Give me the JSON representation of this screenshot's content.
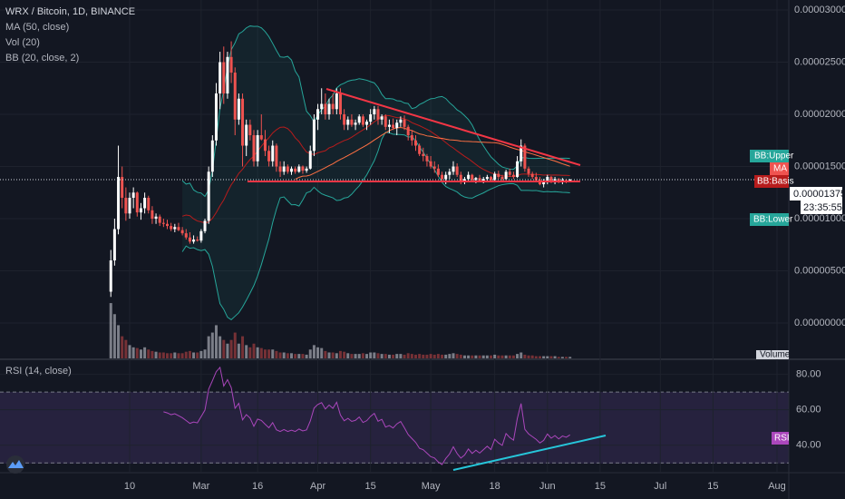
{
  "chart_data": {
    "type": "candlestick",
    "title": "WRX / Bitcoin, 1D, BINANCE",
    "indicators": [
      "MA (50, close)",
      "Vol (20)",
      "BB (20, close, 2)"
    ],
    "rsi_title": "RSI (14, close)",
    "tags": {
      "bb_upper": "BB:Upper",
      "ma": "MA",
      "bb_basis": "BB:Basis",
      "bb_lower": "BB:Lower",
      "volume": "Volume",
      "rsi": "RSI"
    },
    "price_label": "0.00001375",
    "countdown": "23:35:55",
    "up_color": "#ffffff",
    "down_color": "#ef5350",
    "ylim": [
      -3.39e-06,
      3.096e-05
    ],
    "yticks": [
      {
        "value": 3e-05,
        "label": "0.00003000"
      },
      {
        "value": 2.5e-05,
        "label": "0.00002500"
      },
      {
        "value": 2e-05,
        "label": "0.00002000"
      },
      {
        "value": 1.5e-05,
        "label": "0.00001500"
      },
      {
        "value": 1e-05,
        "label": "0.00001000"
      },
      {
        "value": 5e-06,
        "label": "0.00000500"
      },
      {
        "value": 0,
        "label": "0.00000000"
      }
    ],
    "rsi_ylim": [
      25,
      88
    ],
    "rsi_yticks": [
      {
        "value": 80,
        "label": "80.00"
      },
      {
        "value": 60,
        "label": "60.00"
      },
      {
        "value": 40,
        "label": "40.00"
      }
    ],
    "rsi_bands": [
      70,
      30
    ],
    "xticks": [
      {
        "value": "Feb 10",
        "label": "10"
      },
      {
        "value": "Mar 1",
        "label": "Mar"
      },
      {
        "value": "Mar 16",
        "label": "16"
      },
      {
        "value": "Apr 1",
        "label": "Apr"
      },
      {
        "value": "Apr 15",
        "label": "15"
      },
      {
        "value": "May 1",
        "label": "May"
      },
      {
        "value": "May 18",
        "label": "18"
      },
      {
        "value": "Jun 1",
        "label": "Jun"
      },
      {
        "value": "Jun 15",
        "label": "15"
      },
      {
        "value": "Jul 1",
        "label": "Jul"
      },
      {
        "value": "Jul 15",
        "label": "15"
      },
      {
        "value": "Aug 1",
        "label": "Aug"
      }
    ],
    "x": [
      "Feb 5",
      "Feb 6",
      "Feb 7",
      "Feb 8",
      "Feb 9",
      "Feb 10",
      "Feb 11",
      "Feb 12",
      "Feb 13",
      "Feb 14",
      "Feb 15",
      "Feb 16",
      "Feb 17",
      "Feb 18",
      "Feb 19",
      "Feb 20",
      "Feb 21",
      "Feb 22",
      "Feb 23",
      "Feb 24",
      "Feb 25",
      "Feb 26",
      "Feb 27",
      "Feb 28",
      "Mar 1",
      "Mar 2",
      "Mar 3",
      "Mar 4",
      "Mar 5",
      "Mar 6",
      "Mar 7",
      "Mar 8",
      "Mar 9",
      "Mar 10",
      "Mar 11",
      "Mar 12",
      "Mar 13",
      "Mar 14",
      "Mar 15",
      "Mar 16",
      "Mar 17",
      "Mar 18",
      "Mar 19",
      "Mar 20",
      "Mar 21",
      "Mar 22",
      "Mar 23",
      "Mar 24",
      "Mar 25",
      "Mar 26",
      "Mar 27",
      "Mar 28",
      "Mar 29",
      "Mar 30",
      "Mar 31",
      "Apr 1",
      "Apr 2",
      "Apr 3",
      "Apr 4",
      "Apr 5",
      "Apr 6",
      "Apr 7",
      "Apr 8",
      "Apr 9",
      "Apr 10",
      "Apr 11",
      "Apr 12",
      "Apr 13",
      "Apr 14",
      "Apr 15",
      "Apr 16",
      "Apr 17",
      "Apr 18",
      "Apr 19",
      "Apr 20",
      "Apr 21",
      "Apr 22",
      "Apr 23",
      "Apr 24",
      "Apr 25",
      "Apr 26",
      "Apr 27",
      "Apr 28",
      "Apr 29",
      "Apr 30",
      "May 1",
      "May 2",
      "May 3",
      "May 4",
      "May 5",
      "May 6",
      "May 7",
      "May 8",
      "May 9",
      "May 10",
      "May 11",
      "May 12",
      "May 13",
      "May 14",
      "May 15",
      "May 16",
      "May 17",
      "May 18",
      "May 19",
      "May 20",
      "May 21",
      "May 22",
      "May 23",
      "May 24",
      "May 25",
      "May 26",
      "May 27",
      "May 28",
      "May 29",
      "May 30",
      "May 31",
      "Jun 1",
      "Jun 2",
      "Jun 3",
      "Jun 4",
      "Jun 5",
      "Jun 6",
      "Jun 7"
    ],
    "ohlc": [
      [
        3e-06,
        7e-06,
        2.5e-06,
        6e-06
      ],
      [
        6e-06,
        1e-05,
        5.5e-06,
        9e-06
      ],
      [
        9e-06,
        1.7e-05,
        8.5e-06,
        1.4e-05
      ],
      [
        1.4e-05,
        1.5e-05,
        1.1e-05,
        1.2e-05
      ],
      [
        1.2e-05,
        1.3e-05,
        9.8e-06,
        1.05e-05
      ],
      [
        1.05e-05,
        1.25e-05,
        1e-05,
        1.2e-05
      ],
      [
        1.2e-05,
        1.3e-05,
        1.1e-05,
        1.25e-05
      ],
      [
        1.25e-05,
        1.26e-05,
        1.02e-05,
        1.06e-05
      ],
      [
        1.06e-05,
        1.15e-05,
        9.9e-06,
        1.1e-05
      ],
      [
        1.1e-05,
        1.25e-05,
        1.05e-05,
        1.2e-05
      ],
      [
        1.2e-05,
        1.22e-05,
        1.05e-05,
        1.08e-05
      ],
      [
        1.08e-05,
        1.12e-05,
        9.5e-06,
        1e-05
      ],
      [
        1e-05,
        1.05e-05,
        9.5e-06,
        1.02e-05
      ],
      [
        1.02e-05,
        1.04e-05,
        9.3e-06,
        9.6e-06
      ],
      [
        9.6e-06,
        1e-05,
        9.2e-06,
        9.5e-06
      ],
      [
        9.5e-06,
        9.9e-06,
        9e-06,
        9.3e-06
      ],
      [
        9.3e-06,
        9.6e-06,
        8.8e-06,
        9e-06
      ],
      [
        9e-06,
        9.5e-06,
        8.7e-06,
        9.2e-06
      ],
      [
        9.2e-06,
        9.6e-06,
        8.8e-06,
        8.9e-06
      ],
      [
        8.9e-06,
        9.2e-06,
        8.4e-06,
        8.6e-06
      ],
      [
        8.6e-06,
        9e-06,
        8e-06,
        8.2e-06
      ],
      [
        8.2e-06,
        8.7e-06,
        7.6e-06,
        7.8e-06
      ],
      [
        7.8e-06,
        8.4e-06,
        7.6e-06,
        8e-06
      ],
      [
        8e-06,
        8.3e-06,
        7.8e-06,
        7.9e-06
      ],
      [
        7.9e-06,
        9e-06,
        7.7e-06,
        8.8e-06
      ],
      [
        8.8e-06,
        1e-05,
        8.6e-06,
        9.8e-06
      ],
      [
        9.8e-06,
        1.5e-05,
        9.5e-06,
        1.45e-05
      ],
      [
        1.45e-05,
        1.8e-05,
        1.4e-05,
        1.75e-05
      ],
      [
        1.75e-05,
        2.3e-05,
        1.7e-05,
        2.2e-05
      ],
      [
        2.2e-05,
        2.6e-05,
        2.05e-05,
        2.5e-05
      ],
      [
        2.5e-05,
        2.65e-05,
        2.1e-05,
        2.2e-05
      ],
      [
        2.2e-05,
        2.6e-05,
        2.15e-05,
        2.55e-05
      ],
      [
        2.55e-05,
        2.7e-05,
        2.3e-05,
        2.4e-05
      ],
      [
        2.4e-05,
        2.45e-05,
        1.8e-05,
        1.95e-05
      ],
      [
        1.95e-05,
        2.2e-05,
        1.9e-05,
        2.15e-05
      ],
      [
        2.15e-05,
        2.2e-05,
        1.5e-05,
        1.7e-05
      ],
      [
        1.7e-05,
        1.95e-05,
        1.6e-05,
        1.9e-05
      ],
      [
        1.9e-05,
        1.95e-05,
        1.75e-05,
        1.8e-05
      ],
      [
        1.8e-05,
        1.85e-05,
        1.5e-05,
        1.55e-05
      ],
      [
        1.55e-05,
        1.85e-05,
        1.5e-05,
        1.8e-05
      ],
      [
        1.8e-05,
        2e-05,
        1.75e-05,
        1.76e-05
      ],
      [
        1.76e-05,
        1.85e-05,
        1.6e-05,
        1.65e-05
      ],
      [
        1.65e-05,
        1.7e-05,
        1.5e-05,
        1.55e-05
      ],
      [
        1.55e-05,
        1.75e-05,
        1.5e-05,
        1.7e-05
      ],
      [
        1.7e-05,
        1.72e-05,
        1.45e-05,
        1.5e-05
      ],
      [
        1.5e-05,
        1.55e-05,
        1.4e-05,
        1.45e-05
      ],
      [
        1.45e-05,
        1.55e-05,
        1.42e-05,
        1.5e-05
      ],
      [
        1.5e-05,
        1.52e-05,
        1.43e-05,
        1.45e-05
      ],
      [
        1.45e-05,
        1.5e-05,
        1.42e-05,
        1.48e-05
      ],
      [
        1.48e-05,
        1.5e-05,
        1.43e-05,
        1.45e-05
      ],
      [
        1.45e-05,
        1.52e-05,
        1.44e-05,
        1.5e-05
      ],
      [
        1.5e-05,
        1.51e-05,
        1.43e-05,
        1.46e-05
      ],
      [
        1.46e-05,
        1.5e-05,
        1.44e-05,
        1.48e-05
      ],
      [
        1.48e-05,
        1.7e-05,
        1.47e-05,
        1.65e-05
      ],
      [
        1.65e-05,
        2e-05,
        1.6e-05,
        1.95e-05
      ],
      [
        1.95e-05,
        2.1e-05,
        1.85e-05,
        2.05e-05
      ],
      [
        2.05e-05,
        2.25e-05,
        2e-05,
        2.1e-05
      ],
      [
        2.1e-05,
        2.2e-05,
        1.95e-05,
        2e-05
      ],
      [
        2e-05,
        2.15e-05,
        1.95e-05,
        2.1e-05
      ],
      [
        2.1e-05,
        2.2e-05,
        2e-05,
        2.05e-05
      ],
      [
        2.05e-05,
        2.25e-05,
        2e-05,
        2.2e-05
      ],
      [
        2.2e-05,
        2.25e-05,
        1.95e-05,
        2e-05
      ],
      [
        2e-05,
        2.05e-05,
        1.85e-05,
        1.9e-05
      ],
      [
        1.9e-05,
        1.98e-05,
        1.85e-05,
        1.95e-05
      ],
      [
        1.95e-05,
        2e-05,
        1.88e-05,
        1.9e-05
      ],
      [
        1.9e-05,
        1.95e-05,
        1.85e-05,
        1.92e-05
      ],
      [
        1.92e-05,
        2e-05,
        1.9e-05,
        1.98e-05
      ],
      [
        1.98e-05,
        2e-05,
        1.88e-05,
        1.9e-05
      ],
      [
        1.9e-05,
        1.95e-05,
        1.85e-05,
        1.93e-05
      ],
      [
        1.93e-05,
        2.05e-05,
        1.9e-05,
        2e-05
      ],
      [
        2e-05,
        2.08e-05,
        1.95e-05,
        2.05e-05
      ],
      [
        2.05e-05,
        2.08e-05,
        1.9e-05,
        1.95e-05
      ],
      [
        1.95e-05,
        2e-05,
        1.9e-05,
        1.98e-05
      ],
      [
        1.98e-05,
        2e-05,
        1.85e-05,
        1.88e-05
      ],
      [
        1.88e-05,
        1.95e-05,
        1.82e-05,
        1.9e-05
      ],
      [
        1.9e-05,
        1.96e-05,
        1.85e-05,
        1.87e-05
      ],
      [
        1.87e-05,
        1.95e-05,
        1.8e-05,
        1.92e-05
      ],
      [
        1.92e-05,
        1.98e-05,
        1.88e-05,
        1.95e-05
      ],
      [
        1.95e-05,
        1.99e-05,
        1.85e-05,
        1.88e-05
      ],
      [
        1.88e-05,
        1.9e-05,
        1.75e-05,
        1.8e-05
      ],
      [
        1.8e-05,
        1.85e-05,
        1.7e-05,
        1.75e-05
      ],
      [
        1.75e-05,
        1.8e-05,
        1.65e-05,
        1.7e-05
      ],
      [
        1.7e-05,
        1.72e-05,
        1.6e-05,
        1.62e-05
      ],
      [
        1.62e-05,
        1.68e-05,
        1.55e-05,
        1.6e-05
      ],
      [
        1.6e-05,
        1.62e-05,
        1.5e-05,
        1.55e-05
      ],
      [
        1.55e-05,
        1.6e-05,
        1.48e-05,
        1.5e-05
      ],
      [
        1.5e-05,
        1.55e-05,
        1.44e-05,
        1.48e-05
      ],
      [
        1.48e-05,
        1.52e-05,
        1.4e-05,
        1.42e-05
      ],
      [
        1.42e-05,
        1.45e-05,
        1.35e-05,
        1.38e-05
      ],
      [
        1.38e-05,
        1.45e-05,
        1.33e-05,
        1.42e-05
      ],
      [
        1.42e-05,
        1.48e-05,
        1.38e-05,
        1.45e-05
      ],
      [
        1.45e-05,
        1.55e-05,
        1.42e-05,
        1.5e-05
      ],
      [
        1.5e-05,
        1.53e-05,
        1.4e-05,
        1.42e-05
      ],
      [
        1.42e-05,
        1.45e-05,
        1.33e-05,
        1.36e-05
      ],
      [
        1.36e-05,
        1.4e-05,
        1.33e-05,
        1.38e-05
      ],
      [
        1.38e-05,
        1.45e-05,
        1.35e-05,
        1.42e-05
      ],
      [
        1.42e-05,
        1.43e-05,
        1.35e-05,
        1.37e-05
      ],
      [
        1.37e-05,
        1.4e-05,
        1.34e-05,
        1.39e-05
      ],
      [
        1.39e-05,
        1.42e-05,
        1.35e-05,
        1.36e-05
      ],
      [
        1.36e-05,
        1.4e-05,
        1.34e-05,
        1.38e-05
      ],
      [
        1.38e-05,
        1.42e-05,
        1.36e-05,
        1.4e-05
      ],
      [
        1.4e-05,
        1.41e-05,
        1.35e-05,
        1.37e-05
      ],
      [
        1.37e-05,
        1.45e-05,
        1.36e-05,
        1.43e-05
      ],
      [
        1.43e-05,
        1.46e-05,
        1.38e-05,
        1.4e-05
      ],
      [
        1.4e-05,
        1.42e-05,
        1.36e-05,
        1.38e-05
      ],
      [
        1.38e-05,
        1.47e-05,
        1.37e-05,
        1.45e-05
      ],
      [
        1.45e-05,
        1.48e-05,
        1.4e-05,
        1.42e-05
      ],
      [
        1.42e-05,
        1.45e-05,
        1.38e-05,
        1.4e-05
      ],
      [
        1.4e-05,
        1.6e-05,
        1.39e-05,
        1.55e-05
      ],
      [
        1.55e-05,
        1.76e-05,
        1.5e-05,
        1.7e-05
      ],
      [
        1.7e-05,
        1.72e-05,
        1.45e-05,
        1.48e-05
      ],
      [
        1.48e-05,
        1.5e-05,
        1.4e-05,
        1.43e-05
      ],
      [
        1.43e-05,
        1.45e-05,
        1.38e-05,
        1.4e-05
      ],
      [
        1.4e-05,
        1.44e-05,
        1.35e-05,
        1.37e-05
      ],
      [
        1.37e-05,
        1.4e-05,
        1.32e-05,
        1.33e-05
      ],
      [
        1.33e-05,
        1.38e-05,
        1.3e-05,
        1.35e-05
      ],
      [
        1.35e-05,
        1.42e-05,
        1.33e-05,
        1.4e-05
      ],
      [
        1.4e-05,
        1.41e-05,
        1.34e-05,
        1.36e-05
      ],
      [
        1.36e-05,
        1.4e-05,
        1.33e-05,
        1.38e-05
      ],
      [
        1.38e-05,
        1.39e-05,
        1.34e-05,
        1.35e-05
      ],
      [
        1.35e-05,
        1.39e-05,
        1.33e-05,
        1.37e-05
      ],
      [
        1.37e-05,
        1.38e-05,
        1.34e-05,
        1.36e-05
      ],
      [
        1.36e-05,
        1.38e-05,
        1.35e-05,
        1.375e-05
      ]
    ],
    "volume": [
      75,
      60,
      45,
      30,
      25,
      18,
      15,
      14,
      12,
      15,
      12,
      10,
      9,
      8,
      8,
      7,
      7,
      8,
      7,
      7,
      9,
      10,
      8,
      8,
      10,
      12,
      30,
      35,
      45,
      30,
      25,
      20,
      25,
      35,
      20,
      30,
      18,
      15,
      20,
      15,
      14,
      12,
      12,
      12,
      10,
      8,
      8,
      7,
      7,
      6,
      6,
      6,
      5,
      12,
      18,
      15,
      14,
      10,
      8,
      8,
      7,
      10,
      9,
      7,
      6,
      6,
      6,
      7,
      6,
      8,
      8,
      7,
      6,
      6,
      5,
      5,
      6,
      6,
      5,
      7,
      6,
      5,
      6,
      5,
      5,
      6,
      5,
      6,
      5,
      5,
      6,
      7,
      6,
      5,
      4,
      4,
      4,
      4,
      4,
      4,
      4,
      4,
      5,
      4,
      4,
      4,
      4,
      4,
      6,
      8,
      5,
      4,
      4,
      3,
      3,
      3,
      3,
      3,
      3,
      2,
      2,
      2,
      2
    ],
    "volume_max": 80
  }
}
